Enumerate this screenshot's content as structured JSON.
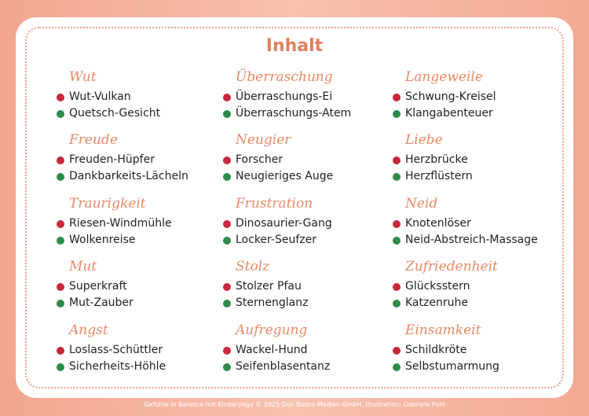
{
  "title": "Inhalt",
  "columns": [
    [
      {
        "heading": "Wut",
        "items": [
          "Wut-Vulkan",
          "Quetsch-Gesicht"
        ]
      },
      {
        "heading": "Freude",
        "items": [
          "Freuden-Hüpfer",
          "Dankbarkeits-Lächeln"
        ]
      },
      {
        "heading": "Traurigkeit",
        "items": [
          "Riesen-Windmühle",
          "Wolkenreise"
        ]
      },
      {
        "heading": "Mut",
        "items": [
          "Superkraft",
          "Mut-Zauber"
        ]
      },
      {
        "heading": "Angst",
        "items": [
          "Loslass-Schüttler",
          "Sicherheits-Höhle"
        ]
      }
    ],
    [
      {
        "heading": "Überraschung",
        "items": [
          "Überraschungs-Ei",
          "Überraschungs-Atem"
        ]
      },
      {
        "heading": "Neugier",
        "items": [
          "Forscher",
          "Neugieriges Auge"
        ]
      },
      {
        "heading": "Frustration",
        "items": [
          "Dinosaurier-Gang",
          "Locker-Seufzer"
        ]
      },
      {
        "heading": "Stolz",
        "items": [
          "Stolzer Pfau",
          "Sternenglanz"
        ]
      },
      {
        "heading": "Aufregung",
        "items": [
          "Wackel-Hund",
          "Seifenblasentanz"
        ]
      }
    ],
    [
      {
        "heading": "Langeweile",
        "items": [
          "Schwung-Kreisel",
          "Klangabenteuer"
        ]
      },
      {
        "heading": "Liebe",
        "items": [
          "Herzbrücke",
          "Herzflüstern"
        ]
      },
      {
        "heading": "Neid",
        "items": [
          "Knotenlöser",
          "Neid-Abstreich-Massage"
        ]
      },
      {
        "heading": "Zufriedenheit",
        "items": [
          "Glücksstern",
          "Katzenruhe"
        ]
      },
      {
        "heading": "Einsamkeit",
        "items": [
          "Schildkröte",
          "Selbstumarmung"
        ]
      }
    ]
  ],
  "footer": "Gefühle in Balance mit Kinderyoga © 2025 Don Bosco Medien GmbH, Illustration: Gabriele Pohl"
}
